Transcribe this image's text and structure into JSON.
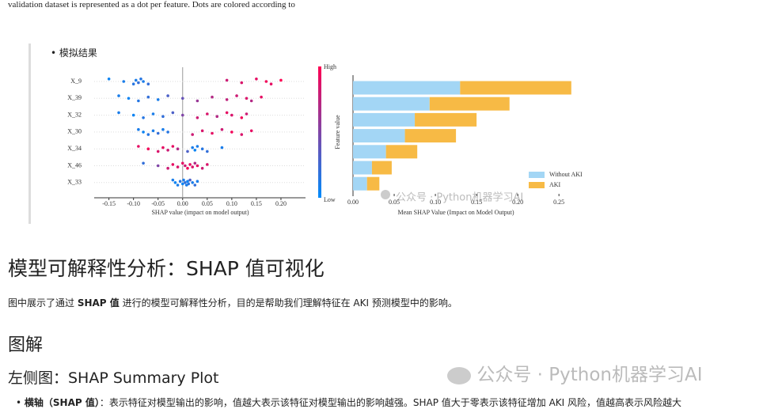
{
  "top_text": "validation dataset is represented as a dot per feature. Dots are colored according to",
  "bullet": "模拟结果",
  "chart_data": [
    {
      "type": "beeswarm",
      "xlabel": "SHAP value (impact on model output)",
      "colorbar": {
        "label": "Feature value",
        "high": "High",
        "low": "Low",
        "colors": [
          "#008bfb",
          "#ff0052"
        ]
      },
      "xlim": [
        -0.18,
        0.25
      ],
      "xticks": [
        -0.15,
        {
          "value": -0.1,
          "label": "-0.10"
        },
        -0.05,
        {
          "value": 0,
          "label": "0.00"
        },
        0.05,
        {
          "value": 0.1,
          "label": "0.10"
        },
        0.15,
        {
          "value": 0.2,
          "label": "0.20"
        }
      ],
      "series": [
        {
          "name": "X_9",
          "values": [
            -0.15,
            -0.12,
            -0.1,
            -0.095,
            -0.09,
            -0.085,
            -0.08,
            -0.07,
            0.09,
            0.12,
            0.15,
            0.17,
            0.18,
            0.2
          ],
          "feature_values": [
            0.05,
            0.1,
            0.15,
            0.1,
            0.2,
            0.15,
            0.1,
            0.2,
            0.8,
            0.85,
            0.9,
            0.95,
            0.9,
            1.0
          ]
        },
        {
          "name": "X_39",
          "values": [
            -0.13,
            -0.11,
            -0.09,
            -0.07,
            -0.05,
            -0.03,
            0,
            0.03,
            0.06,
            0.09,
            0.11,
            0.13,
            0.14,
            0.16
          ],
          "feature_values": [
            0.1,
            0.05,
            0.15,
            0.2,
            0.1,
            0.3,
            0.4,
            0.6,
            0.7,
            0.75,
            0.8,
            0.85,
            0.7,
            0.9
          ]
        },
        {
          "name": "X_32",
          "values": [
            -0.13,
            -0.1,
            -0.08,
            -0.06,
            -0.04,
            -0.02,
            0,
            0.03,
            0.05,
            0.07,
            0.09,
            0.1,
            0.12,
            0.13
          ],
          "feature_values": [
            0.1,
            0.05,
            0.15,
            0.1,
            0.2,
            0.3,
            0.5,
            0.8,
            0.85,
            0.7,
            0.9,
            0.85,
            0.95,
            0.8
          ]
        },
        {
          "name": "X_30",
          "values": [
            -0.09,
            -0.08,
            -0.07,
            -0.06,
            -0.05,
            -0.04,
            -0.03,
            0.02,
            0.04,
            0.06,
            0.08,
            0.1,
            0.12,
            0.14
          ],
          "feature_values": [
            0.1,
            0.05,
            0.15,
            0.1,
            0.2,
            0.1,
            0.15,
            0.8,
            0.85,
            0.9,
            0.8,
            0.95,
            0.85,
            0.9
          ]
        },
        {
          "name": "X_34",
          "values": [
            -0.09,
            -0.07,
            -0.05,
            -0.04,
            -0.03,
            -0.02,
            -0.01,
            0.01,
            0.02,
            0.025,
            0.03,
            0.04,
            0.05,
            0.08
          ],
          "feature_values": [
            0.9,
            0.95,
            0.85,
            0.9,
            0.8,
            0.9,
            0.7,
            0.3,
            0.1,
            0.05,
            0.1,
            0.15,
            0.2,
            0.1
          ]
        },
        {
          "name": "X_46",
          "values": [
            -0.08,
            -0.05,
            -0.03,
            -0.02,
            -0.01,
            0,
            0.005,
            0.01,
            0.015,
            0.02,
            0.025,
            0.03,
            0.04,
            0.05
          ],
          "feature_values": [
            0.2,
            0.5,
            0.8,
            0.9,
            0.85,
            0.9,
            0.8,
            0.95,
            0.9,
            0.85,
            0.7,
            0.9,
            0.8,
            0.85
          ]
        },
        {
          "name": "X_33",
          "values": [
            -0.02,
            -0.015,
            -0.01,
            -0.005,
            0,
            0.002,
            0.005,
            0.008,
            0.01,
            0.012,
            0.015,
            0.02,
            0.025,
            0.03
          ],
          "feature_values": [
            0.1,
            0.05,
            0.1,
            0.15,
            0.05,
            0.1,
            0.2,
            0.1,
            0.05,
            0.15,
            0.3,
            0.1,
            0.2,
            0.1
          ]
        }
      ]
    },
    {
      "type": "stacked-barh",
      "xlabel": "Mean SHAP Value (Impact on Model Output)",
      "xlim": [
        0,
        0.27
      ],
      "xticks": [
        {
          "value": 0,
          "label": "0.00"
        },
        0.05,
        {
          "value": 0.1,
          "label": "0.10"
        },
        0.15,
        {
          "value": 0.2,
          "label": "0.20"
        },
        0.25
      ],
      "series": [
        {
          "name": "Without AKI",
          "color": "#a3d6f5",
          "values": [
            0.13,
            0.093,
            0.075,
            0.063,
            0.04,
            0.023,
            0.017
          ]
        },
        {
          "name": "AKI",
          "color": "#f7ba45",
          "values": [
            0.135,
            0.097,
            0.075,
            0.062,
            0.038,
            0.024,
            0.015
          ]
        }
      ]
    }
  ],
  "heading": "模型可解释性分析：SHAP 值可视化",
  "paragraph": {
    "before": "图中展示了通过 ",
    "bold": "SHAP 值",
    "after": " 进行的模型可解释性分析，目的是帮助我们理解特征在 AKI 预测模型中的影响。"
  },
  "h2": "图解",
  "h3": "左侧图：SHAP Summary Plot",
  "list_item": {
    "bold": "横轴（SHAP 值）",
    "text": "：表示特征对模型输出的影响，值越大表示该特征对模型输出的影响越强。SHAP 值大于零表示该特征增加 AKI 风险，值越高表示风险越大"
  },
  "watermark": "公众号 · Python机器学习AI"
}
